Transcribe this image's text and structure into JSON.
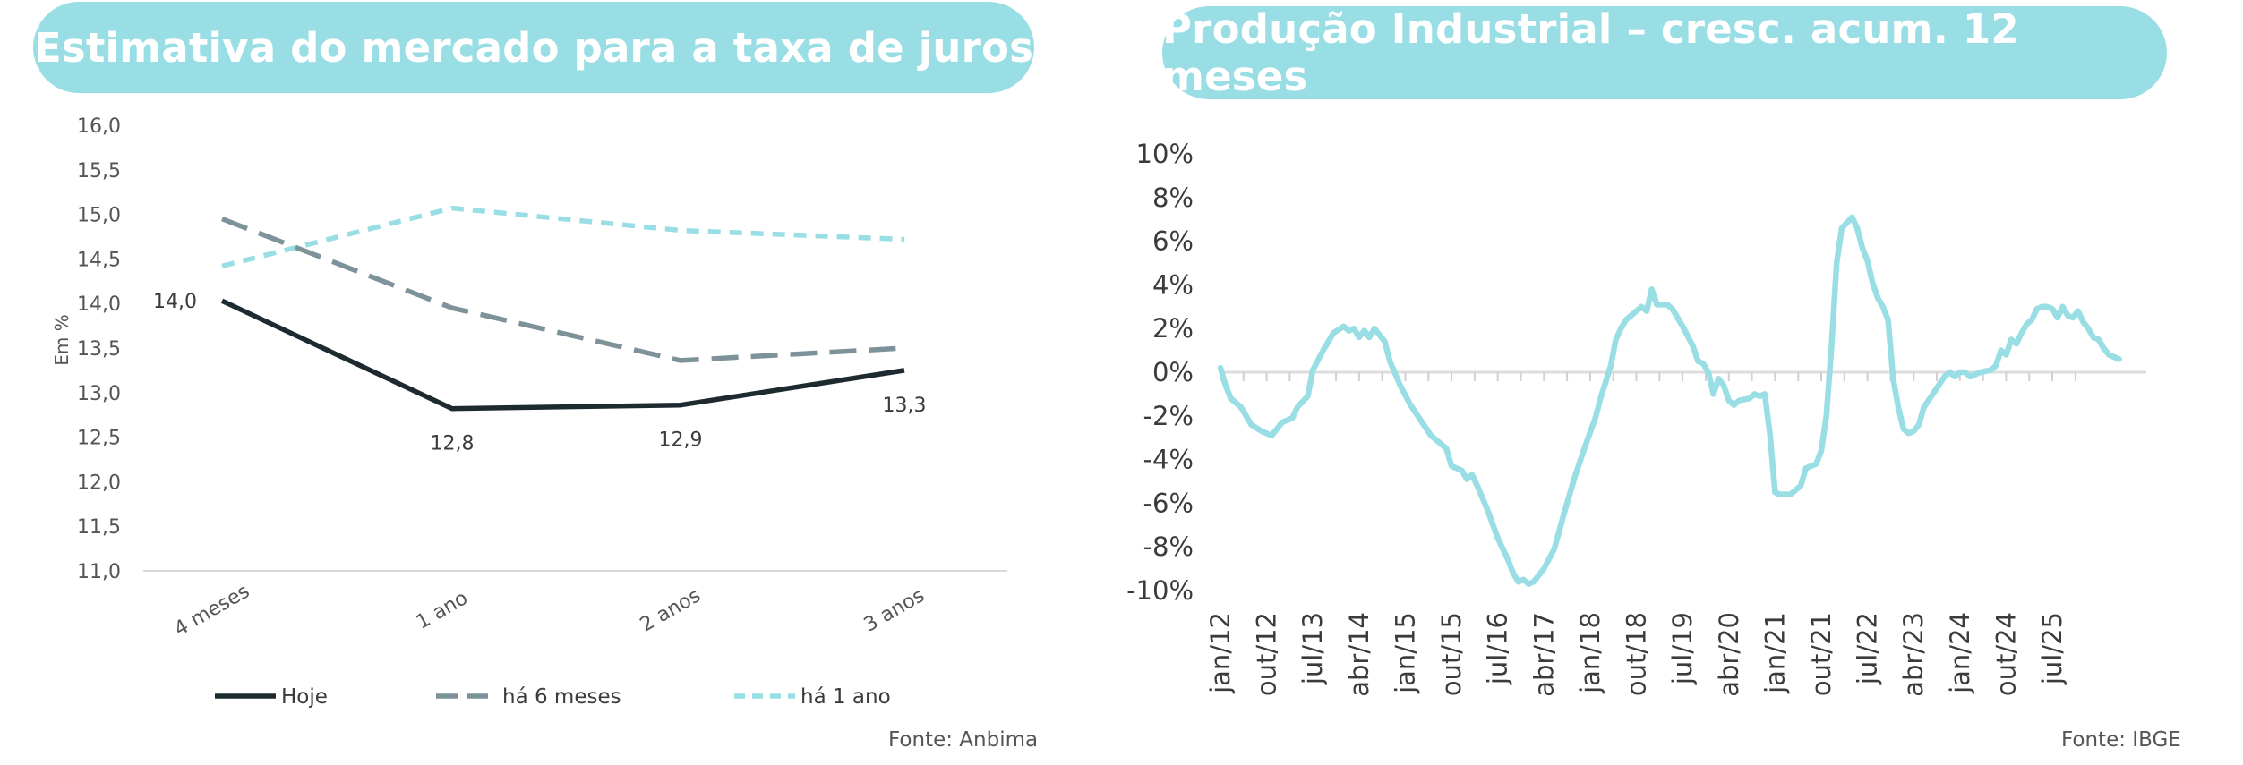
{
  "chart_data": [
    {
      "type": "line",
      "title": "Estimativa do mercado para a taxa de juros",
      "ylabel": "Em %",
      "xlabel": "",
      "ylim": [
        11.0,
        16.0
      ],
      "yticks": [
        "16,0",
        "15,5",
        "15,0",
        "14,5",
        "14,0",
        "13,5",
        "13,0",
        "12,5",
        "12,0",
        "11,5",
        "11,0"
      ],
      "categories": [
        "4 meses",
        "1 ano",
        "2 anos",
        "3 anos"
      ],
      "series": [
        {
          "name": "Hoje",
          "values": [
            14.03,
            12.82,
            12.86,
            13.25
          ],
          "color": "#1d2b30",
          "dash": "solid"
        },
        {
          "name": "há 6 meses",
          "values": [
            14.95,
            13.95,
            13.36,
            13.5
          ],
          "color": "#7e929a",
          "dash": "long"
        },
        {
          "name": "há 1 ano",
          "values": [
            14.42,
            15.07,
            14.82,
            14.72
          ],
          "color": "#98dee4",
          "dash": "short"
        }
      ],
      "data_labels": [
        "14,0",
        "12,8",
        "12,9",
        "13,3"
      ],
      "source": "Fonte: Anbima"
    },
    {
      "type": "line",
      "title": "Produção Industrial – cresc. acum. 12 meses",
      "ylim": [
        -10,
        10
      ],
      "yticks": [
        "10%",
        "8%",
        "6%",
        "4%",
        "2%",
        "0%",
        "-2%",
        "-4%",
        "-6%",
        "-8%",
        "-10%"
      ],
      "xtick_labels": [
        "jan/12",
        "out/12",
        "jul/13",
        "abr/14",
        "jan/15",
        "out/15",
        "jul/16",
        "abr/17",
        "jan/18",
        "out/18",
        "jul/19",
        "abr/20",
        "jan/21",
        "out/21",
        "jul/22",
        "abr/23",
        "jan/24",
        "out/24",
        "jul/25"
      ],
      "x_start": "jan/12",
      "x_end": "set/25",
      "series": [
        {
          "name": "Produção Industrial",
          "color": "#98dee4",
          "points": [
            [
              0,
              0.2
            ],
            [
              1,
              -0.6
            ],
            [
              2,
              -1.2
            ],
            [
              4,
              -1.6
            ],
            [
              6,
              -2.4
            ],
            [
              8,
              -2.7
            ],
            [
              10,
              -2.9
            ],
            [
              12,
              -2.3
            ],
            [
              14,
              -2.1
            ],
            [
              15,
              -1.6
            ],
            [
              17,
              -1.1
            ],
            [
              18,
              0.1
            ],
            [
              20,
              1.0
            ],
            [
              22,
              1.8
            ],
            [
              24,
              2.1
            ],
            [
              25,
              1.9
            ],
            [
              26,
              2.0
            ],
            [
              27,
              1.6
            ],
            [
              28,
              1.9
            ],
            [
              29,
              1.6
            ],
            [
              30,
              2.0
            ],
            [
              31,
              1.7
            ],
            [
              32,
              1.4
            ],
            [
              33,
              0.5
            ],
            [
              35,
              -0.6
            ],
            [
              37,
              -1.5
            ],
            [
              39,
              -2.2
            ],
            [
              41,
              -2.9
            ],
            [
              42,
              -3.1
            ],
            [
              43,
              -3.3
            ],
            [
              44,
              -3.5
            ],
            [
              45,
              -4.3
            ],
            [
              47,
              -4.5
            ],
            [
              48,
              -4.9
            ],
            [
              49,
              -4.7
            ],
            [
              50,
              -5.2
            ],
            [
              52,
              -6.3
            ],
            [
              54,
              -7.6
            ],
            [
              56,
              -8.6
            ],
            [
              57,
              -9.2
            ],
            [
              58,
              -9.6
            ],
            [
              59,
              -9.5
            ],
            [
              60,
              -9.7
            ],
            [
              61,
              -9.6
            ],
            [
              62,
              -9.3
            ],
            [
              63,
              -9.0
            ],
            [
              65,
              -8.1
            ],
            [
              67,
              -6.4
            ],
            [
              69,
              -4.8
            ],
            [
              71,
              -3.4
            ],
            [
              73,
              -2.1
            ],
            [
              74,
              -1.2
            ],
            [
              76,
              0.3
            ],
            [
              77,
              1.5
            ],
            [
              78,
              2.0
            ],
            [
              79,
              2.4
            ],
            [
              81,
              2.8
            ],
            [
              82,
              3.0
            ],
            [
              83,
              2.8
            ],
            [
              84,
              3.8
            ],
            [
              85,
              3.1
            ],
            [
              87,
              3.1
            ],
            [
              88,
              2.9
            ],
            [
              90,
              2.1
            ],
            [
              92,
              1.2
            ],
            [
              93,
              0.5
            ],
            [
              94,
              0.4
            ],
            [
              95,
              0.0
            ],
            [
              96,
              -1.0
            ],
            [
              97,
              -0.3
            ],
            [
              98,
              -0.6
            ],
            [
              99,
              -1.3
            ],
            [
              100,
              -1.5
            ],
            [
              101,
              -1.3
            ],
            [
              103,
              -1.2
            ],
            [
              104,
              -1.0
            ],
            [
              105,
              -1.1
            ],
            [
              106,
              -1.0
            ],
            [
              107,
              -2.8
            ],
            [
              108,
              -5.5
            ],
            [
              109,
              -5.6
            ],
            [
              110,
              -5.6
            ],
            [
              111,
              -5.6
            ],
            [
              112,
              -5.4
            ],
            [
              113,
              -5.2
            ],
            [
              114,
              -4.4
            ],
            [
              116,
              -4.2
            ],
            [
              117,
              -3.6
            ],
            [
              118,
              -2.0
            ],
            [
              119,
              1.2
            ],
            [
              120,
              5.0
            ],
            [
              121,
              6.6
            ],
            [
              123,
              7.1
            ],
            [
              124,
              6.6
            ],
            [
              125,
              5.7
            ],
            [
              126,
              5.1
            ],
            [
              127,
              4.1
            ],
            [
              128,
              3.4
            ],
            [
              129,
              3.0
            ],
            [
              130,
              2.4
            ],
            [
              131,
              -0.3
            ],
            [
              132,
              -1.6
            ],
            [
              133,
              -2.6
            ],
            [
              134,
              -2.8
            ],
            [
              135,
              -2.7
            ],
            [
              136,
              -2.4
            ],
            [
              137,
              -1.6
            ],
            [
              139,
              -0.9
            ],
            [
              141,
              -0.2
            ],
            [
              142,
              0.0
            ],
            [
              143,
              -0.2
            ],
            [
              144,
              0.0
            ],
            [
              145,
              0.0
            ],
            [
              146,
              -0.2
            ],
            [
              148,
              0.0
            ],
            [
              150,
              0.1
            ],
            [
              151,
              0.3
            ],
            [
              152,
              1.0
            ],
            [
              153,
              0.8
            ],
            [
              154,
              1.5
            ],
            [
              155,
              1.3
            ],
            [
              156,
              1.8
            ],
            [
              157,
              2.2
            ],
            [
              158,
              2.4
            ],
            [
              159,
              2.9
            ],
            [
              160,
              3.0
            ],
            [
              161,
              3.0
            ],
            [
              162,
              2.9
            ],
            [
              163,
              2.5
            ],
            [
              164,
              3.0
            ],
            [
              165,
              2.6
            ],
            [
              166,
              2.5
            ],
            [
              167,
              2.8
            ],
            [
              168,
              2.3
            ],
            [
              169,
              2.0
            ],
            [
              170,
              1.6
            ],
            [
              171,
              1.5
            ],
            [
              172,
              1.1
            ],
            [
              173,
              0.8
            ],
            [
              175,
              0.6
            ]
          ]
        }
      ],
      "source": "Fonte: IBGE"
    }
  ]
}
